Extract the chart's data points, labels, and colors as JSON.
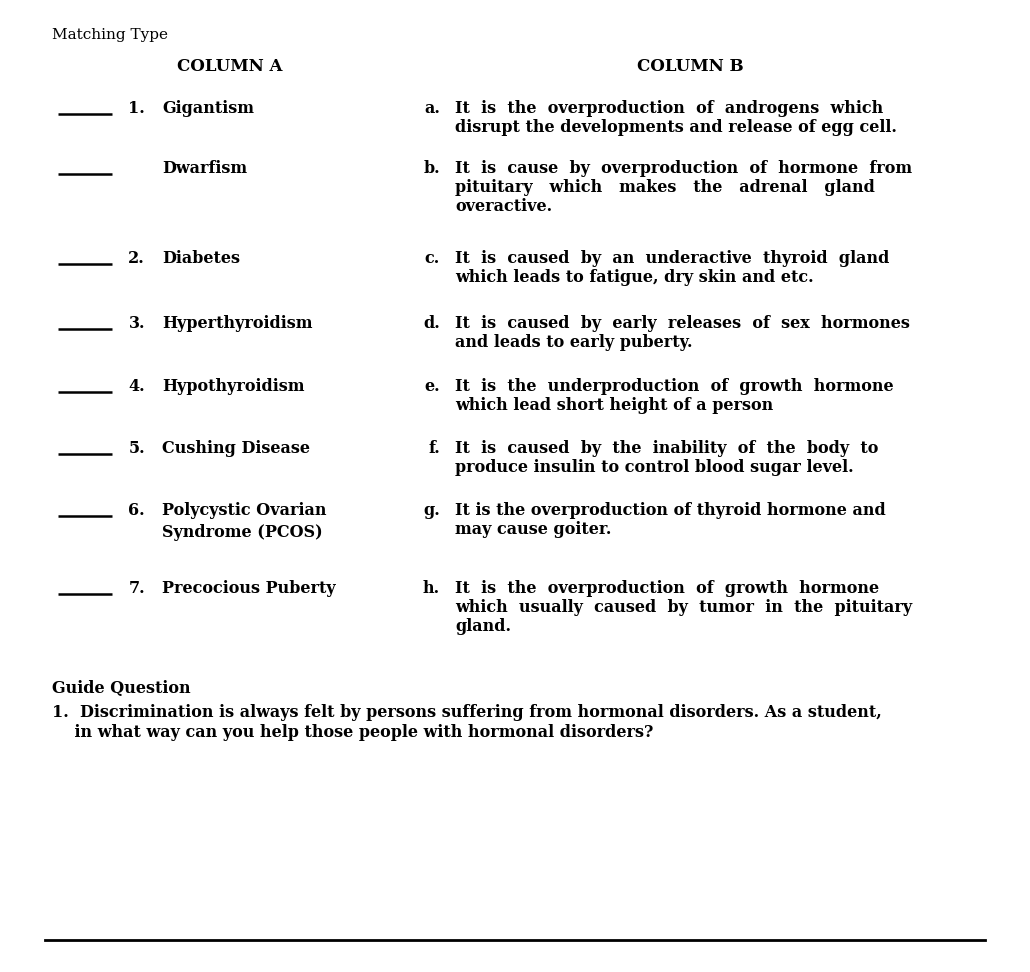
{
  "title": "Matching Type",
  "col_a_header": "COLUMN A",
  "col_b_header": "COLUMN B",
  "background_color": "#ffffff",
  "text_color": "#000000",
  "rows": [
    {
      "number": "1.",
      "term": "Gigantism",
      "letter": "a.",
      "def_lines": [
        "It  is  the  overproduction  of  androgens  which",
        "disrupt the developments and release of egg cell."
      ],
      "has_number": true
    },
    {
      "number": "",
      "term": "Dwarfism",
      "letter": "b.",
      "def_lines": [
        "It  is  cause  by  overproduction  of  hormone  from",
        "pituitary   which   makes   the   adrenal   gland",
        "overactive."
      ],
      "has_number": false
    },
    {
      "number": "2.",
      "term": "Diabetes",
      "letter": "c.",
      "def_lines": [
        "It  is  caused  by  an  underactive  thyroid  gland",
        "which leads to fatigue, dry skin and etc."
      ],
      "has_number": true
    },
    {
      "number": "3.",
      "term": "Hyperthyroidism",
      "letter": "d.",
      "def_lines": [
        "It  is  caused  by  early  releases  of  sex  hormones",
        "and leads to early puberty."
      ],
      "has_number": true
    },
    {
      "number": "4.",
      "term": "Hypothyroidism",
      "letter": "e.",
      "def_lines": [
        "It  is  the  underproduction  of  growth  hormone",
        "which lead short height of a person"
      ],
      "has_number": true
    },
    {
      "number": "5.",
      "term": "Cushing Disease",
      "letter": "f.",
      "def_lines": [
        "It  is  caused  by  the  inability  of  the  body  to",
        "produce insulin to control blood sugar level."
      ],
      "has_number": true
    },
    {
      "number": "6.",
      "term": "Polycystic Ovarian\nSyndrome (PCOS)",
      "letter": "g.",
      "def_lines": [
        "It is the overproduction of thyroid hormone and",
        "may cause goiter."
      ],
      "has_number": true
    },
    {
      "number": "7.",
      "term": "Precocious Puberty",
      "letter": "h.",
      "def_lines": [
        "It  is  the  overproduction  of  growth  hormone",
        "which  usually  caused  by  tumor  in  the  pituitary",
        "gland."
      ],
      "has_number": true
    }
  ],
  "guide_header": "Guide Question",
  "guide_line1": "1.  Discrimination is always felt by persons suffering from hormonal disorders. As a student,",
  "guide_line2": "    in what way can you help those people with hormonal disorders?"
}
